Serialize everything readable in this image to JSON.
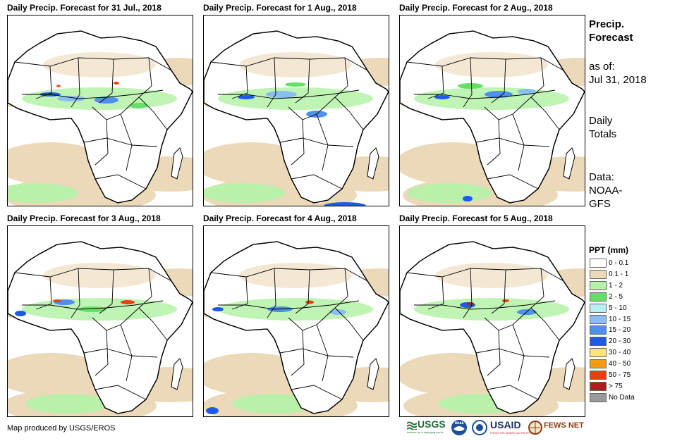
{
  "panels": [
    {
      "title": "Daily Precip. Forecast for 31 Jul., 2018"
    },
    {
      "title": "Daily Precip. Forecast for 1 Aug., 2018"
    },
    {
      "title": "Daily Precip. Forecast for 2 Aug., 2018"
    },
    {
      "title": "Daily Precip. Forecast for 3 Aug., 2018"
    },
    {
      "title": "Daily Precip. Forecast for 4 Aug., 2018"
    },
    {
      "title": "Daily Precip. Forecast for 5 Aug., 2018"
    }
  ],
  "sidebar": {
    "title_line1": "Precip.",
    "title_line2": "Forecast",
    "asof_label": "as of:",
    "asof_date": "Jul 31, 2018",
    "daily_line1": "Daily",
    "daily_line2": "Totals",
    "data_line1": "Data:",
    "data_line2": "NOAA-",
    "data_line3": "GFS"
  },
  "legend": {
    "title": "PPT (mm)",
    "items": [
      {
        "label": "0 - 0.1",
        "color": "#ffffff"
      },
      {
        "label": "0.1 - 1",
        "color": "#ecd9b9"
      },
      {
        "label": "1 - 2",
        "color": "#b4f2a8"
      },
      {
        "label": "2 - 5",
        "color": "#64e064"
      },
      {
        "label": "5 - 10",
        "color": "#b8eef4"
      },
      {
        "label": "10 - 15",
        "color": "#88bff0"
      },
      {
        "label": "15 - 20",
        "color": "#4e90ec"
      },
      {
        "label": "20 - 30",
        "color": "#1e5ae6"
      },
      {
        "label": "30 - 40",
        "color": "#fce47a"
      },
      {
        "label": "40 - 50",
        "color": "#f39c12"
      },
      {
        "label": "50 - 75",
        "color": "#e8400c"
      },
      {
        "label": "> 75",
        "color": "#a82020"
      },
      {
        "label": "No Data",
        "color": "#999999"
      }
    ]
  },
  "footer": {
    "credit": "Map produced by USGS/EROS",
    "logo_usgs": "USGS",
    "logo_usgs_tagline": "science for a changing world",
    "logo_noaa": "NOAA",
    "logo_usaid": "USAID",
    "logo_usaid_tagline": "FROM THE AMERICAN PEOPLE",
    "logo_fewsnet": "FEWS NET"
  },
  "colors": {
    "sand": "#ecd9b9",
    "light_green": "#b4f2a8",
    "green": "#64e064",
    "light_blue": "#88bff0",
    "blue": "#4e90ec",
    "dark_blue": "#1e5ae6",
    "red": "#e8400c",
    "dark_red": "#a82020"
  }
}
